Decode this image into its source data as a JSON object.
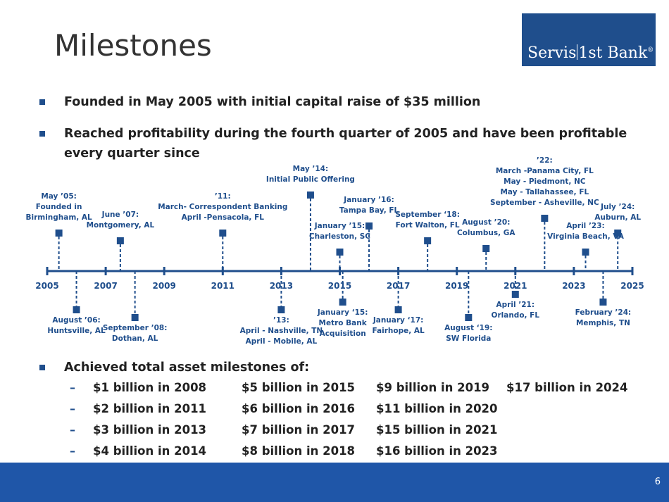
{
  "slide": {
    "title": "Milestones",
    "page_number": "6",
    "logo": {
      "part1": "Servis",
      "part2": "1st Bank",
      "mark": "®"
    }
  },
  "bullets": [
    {
      "text": "Founded in May 2005 with initial capital raise of $35 million"
    },
    {
      "line1": "Reached profitability during the fourth quarter of 2005 and have been profitable",
      "line2": "every quarter since"
    }
  ],
  "timeline": {
    "start": 2005,
    "end": 2025,
    "tick_labels": [
      "2005",
      "2007",
      "2009",
      "2011",
      "2013",
      "2015",
      "2017",
      "2019",
      "2021",
      "2023",
      "2025"
    ],
    "events_above": [
      {
        "year": 2005.4,
        "lines": [
          "May ’05:",
          "Founded in",
          "Birmingham, AL"
        ]
      },
      {
        "year": 2007.5,
        "lines": [
          "June ’07:",
          "Montgomery, AL"
        ]
      },
      {
        "year": 2011.0,
        "lines": [
          "’11:",
          "March- Correspondent Banking",
          "April -Pensacola, FL"
        ]
      },
      {
        "year": 2014.0,
        "lines": [
          "May ’14:",
          "Initial Public Offering"
        ]
      },
      {
        "year": 2015.0,
        "lines": [
          "January ’15:",
          "Charleston, SC"
        ]
      },
      {
        "year": 2016.0,
        "lines": [
          "January ’16:",
          "Tampa Bay, FL"
        ]
      },
      {
        "year": 2018.0,
        "lines": [
          "September ‘18:",
          "Fort Walton, FL"
        ]
      },
      {
        "year": 2020.0,
        "lines": [
          "August ’20:",
          "Columbus, GA"
        ]
      },
      {
        "year": 2022.0,
        "lines": [
          "’22:",
          "March -Panama City, FL",
          "May - Piedmont, NC",
          "May - Tallahassee, FL",
          "September - Asheville, NC"
        ]
      },
      {
        "year": 2023.4,
        "lines": [
          "April ’23:",
          "Virginia Beach, VA"
        ]
      },
      {
        "year": 2024.5,
        "lines": [
          "July ’24:",
          "Auburn, AL"
        ]
      }
    ],
    "events_below": [
      {
        "year": 2006.0,
        "lines": [
          "August ’06:",
          "Huntsville, AL"
        ]
      },
      {
        "year": 2008.0,
        "lines": [
          "September ’08:",
          "Dothan, AL"
        ]
      },
      {
        "year": 2013.0,
        "lines": [
          "’13:",
          "April - Nashville, TN",
          "April - Mobile, AL"
        ]
      },
      {
        "year": 2015.1,
        "lines": [
          "January ‘15:",
          "Metro Bank",
          "Acquisition"
        ]
      },
      {
        "year": 2017.0,
        "lines": [
          "January ‘17:",
          "Fairhope, AL"
        ]
      },
      {
        "year": 2019.4,
        "lines": [
          "August ‘19:",
          "SW Florida"
        ]
      },
      {
        "year": 2021.0,
        "lines": [
          "April ’21:",
          "Orlando, FL"
        ]
      },
      {
        "year": 2024.0,
        "lines": [
          "February ’24:",
          "Memphis, TN"
        ]
      }
    ]
  },
  "assets": {
    "heading": "Achieved total asset milestones of:",
    "columns": [
      [
        "$1 billion in 2008",
        "$2 billion in 2011",
        "$3 billion in 2013",
        "$4 billion in 2014"
      ],
      [
        "$5 billion in 2015",
        "$6 billion in 2016",
        "$7 billion in 2017",
        "$8 billion in 2018"
      ],
      [
        "$9 billion in 2019",
        "$11 billion in 2020",
        "$15 billion in 2021",
        "$16 billion in 2023"
      ],
      [
        "$17 billion in 2024"
      ]
    ]
  },
  "colors": {
    "accent": "#1f4e8c",
    "footer": "#1f56a8",
    "text": "#222222"
  }
}
